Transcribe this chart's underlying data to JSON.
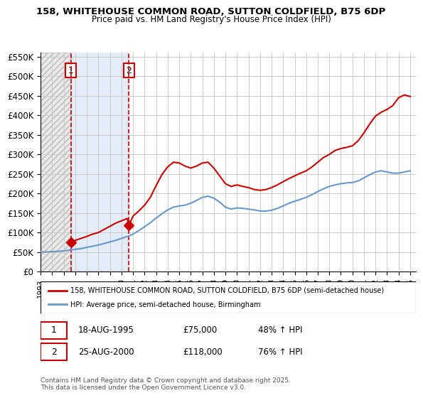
{
  "title_line1": "158, WHITEHOUSE COMMON ROAD, SUTTON COLDFIELD, B75 6DP",
  "title_line2": "Price paid vs. HM Land Registry's House Price Index (HPI)",
  "xlabel": "",
  "ylabel": "",
  "bg_color": "#ffffff",
  "plot_bg_color": "#ffffff",
  "grid_color": "#cccccc",
  "hatch_color": "#d0d0d0",
  "legend_label_red": "158, WHITEHOUSE COMMON ROAD, SUTTON COLDFIELD, B75 6DP (semi-detached house)",
  "legend_label_blue": "HPI: Average price, semi-detached house, Birmingham",
  "footnote": "Contains HM Land Registry data © Crown copyright and database right 2025.\nThis data is licensed under the Open Government Licence v3.0.",
  "sale1_label": "1",
  "sale1_date": "18-AUG-1995",
  "sale1_price": "£75,000",
  "sale1_hpi": "48% ↑ HPI",
  "sale1_year": 1995.625,
  "sale1_value": 75000,
  "sale2_label": "2",
  "sale2_date": "25-AUG-2000",
  "sale2_price": "£118,000",
  "sale2_hpi": "76% ↑ HPI",
  "sale2_year": 2000.646,
  "sale2_value": 118000,
  "red_color": "#cc0000",
  "blue_color": "#6699cc",
  "dashed_red": "#cc0000",
  "marker_color": "#cc0000",
  "hatch_region1_start": 1993.0,
  "hatch_region1_end": 1995.625,
  "hatch_region2_start": 1995.625,
  "hatch_region2_end": 2000.646,
  "hpi_years": [
    1993.0,
    1993.5,
    1994.0,
    1994.5,
    1995.0,
    1995.5,
    1995.625,
    1996.0,
    1996.5,
    1997.0,
    1997.5,
    1998.0,
    1998.5,
    1999.0,
    1999.5,
    2000.0,
    2000.5,
    2000.646,
    2001.0,
    2001.5,
    2002.0,
    2002.5,
    2003.0,
    2003.5,
    2004.0,
    2004.5,
    2005.0,
    2005.5,
    2006.0,
    2006.5,
    2007.0,
    2007.5,
    2008.0,
    2008.5,
    2009.0,
    2009.5,
    2010.0,
    2010.5,
    2011.0,
    2011.5,
    2012.0,
    2012.5,
    2013.0,
    2013.5,
    2014.0,
    2014.5,
    2015.0,
    2015.5,
    2016.0,
    2016.5,
    2017.0,
    2017.5,
    2018.0,
    2018.5,
    2019.0,
    2019.5,
    2020.0,
    2020.5,
    2021.0,
    2021.5,
    2022.0,
    2022.5,
    2023.0,
    2023.5,
    2024.0,
    2024.5,
    2025.0
  ],
  "hpi_values": [
    50000,
    50500,
    51000,
    52000,
    53000,
    55000,
    55500,
    57000,
    59000,
    62000,
    65000,
    68000,
    72000,
    76000,
    80000,
    85000,
    90000,
    91000,
    96000,
    105000,
    115000,
    125000,
    137000,
    148000,
    158000,
    165000,
    168000,
    170000,
    175000,
    182000,
    190000,
    193000,
    188000,
    178000,
    165000,
    160000,
    163000,
    162000,
    160000,
    158000,
    155000,
    155000,
    157000,
    162000,
    168000,
    175000,
    180000,
    185000,
    190000,
    197000,
    205000,
    212000,
    218000,
    222000,
    225000,
    227000,
    228000,
    232000,
    240000,
    248000,
    255000,
    258000,
    255000,
    252000,
    252000,
    255000,
    258000
  ],
  "red_years": [
    1995.625,
    1996.0,
    1996.5,
    1997.0,
    1997.5,
    1998.0,
    1998.5,
    1999.0,
    1999.5,
    2000.0,
    2000.5,
    2000.646,
    2001.0,
    2001.5,
    2002.0,
    2002.5,
    2003.0,
    2003.5,
    2004.0,
    2004.5,
    2005.0,
    2005.5,
    2006.0,
    2006.5,
    2007.0,
    2007.5,
    2008.0,
    2008.5,
    2009.0,
    2009.5,
    2010.0,
    2010.5,
    2011.0,
    2011.5,
    2012.0,
    2012.5,
    2013.0,
    2013.5,
    2014.0,
    2014.5,
    2015.0,
    2015.5,
    2016.0,
    2016.5,
    2017.0,
    2017.5,
    2018.0,
    2018.5,
    2019.0,
    2019.5,
    2020.0,
    2020.5,
    2021.0,
    2021.5,
    2022.0,
    2022.5,
    2023.0,
    2023.5,
    2024.0,
    2024.5,
    2025.0
  ],
  "red_values": [
    75000,
    80000,
    85000,
    90000,
    96000,
    100000,
    108000,
    116000,
    124000,
    130000,
    136000,
    118000,
    142000,
    155000,
    170000,
    190000,
    220000,
    248000,
    268000,
    280000,
    278000,
    270000,
    265000,
    270000,
    278000,
    280000,
    265000,
    245000,
    225000,
    218000,
    222000,
    218000,
    215000,
    210000,
    208000,
    210000,
    215000,
    222000,
    230000,
    238000,
    245000,
    252000,
    258000,
    268000,
    280000,
    292000,
    300000,
    310000,
    315000,
    318000,
    322000,
    335000,
    355000,
    378000,
    398000,
    408000,
    415000,
    425000,
    445000,
    452000,
    448000
  ],
  "ylim": [
    0,
    560000
  ],
  "yticks": [
    0,
    50000,
    100000,
    150000,
    200000,
    250000,
    300000,
    350000,
    400000,
    450000,
    500000,
    550000
  ],
  "ytick_labels": [
    "£0",
    "£50K",
    "£100K",
    "£150K",
    "£200K",
    "£250K",
    "£300K",
    "£350K",
    "£400K",
    "£450K",
    "£500K",
    "£550K"
  ],
  "xlim": [
    1993.0,
    2025.5
  ],
  "xticks": [
    1993,
    1994,
    1995,
    1996,
    1997,
    1998,
    1999,
    2000,
    2001,
    2002,
    2003,
    2004,
    2005,
    2006,
    2007,
    2008,
    2009,
    2010,
    2011,
    2012,
    2013,
    2014,
    2015,
    2016,
    2017,
    2018,
    2019,
    2020,
    2021,
    2022,
    2023,
    2024,
    2025
  ]
}
